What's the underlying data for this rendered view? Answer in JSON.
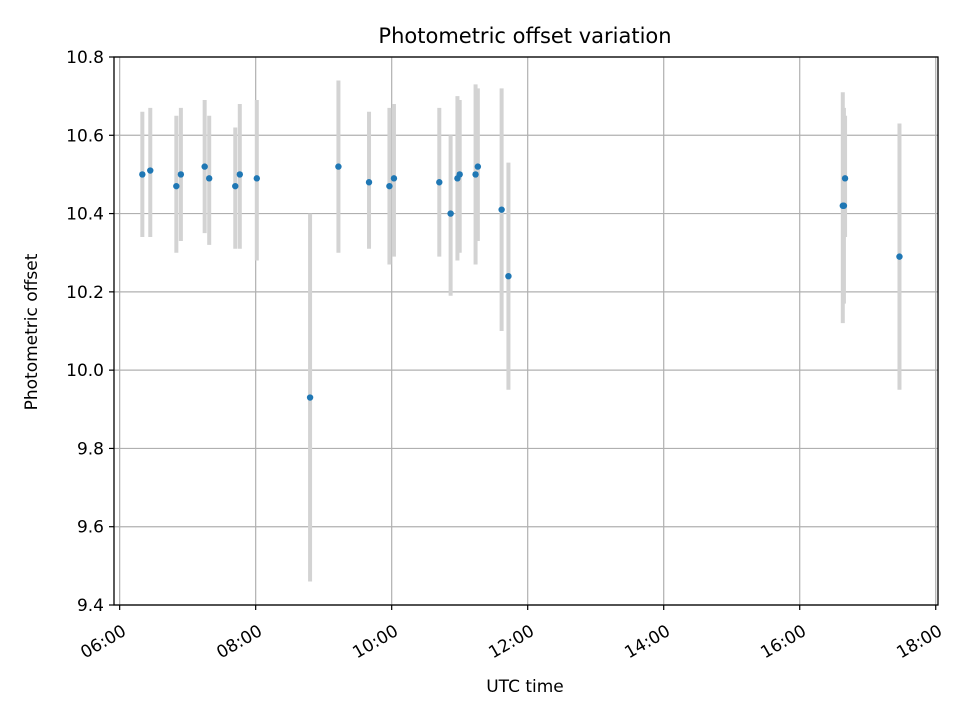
{
  "chart_data": {
    "type": "scatter",
    "title": "Photometric offset variation",
    "xlabel": "UTC time",
    "ylabel": "Photometric offset",
    "x_unit": "hours",
    "xlim": [
      "05:55",
      "18:02"
    ],
    "ylim": [
      9.4,
      10.8
    ],
    "x_ticks": [
      "06:00",
      "08:00",
      "10:00",
      "12:00",
      "14:00",
      "16:00",
      "18:00"
    ],
    "y_ticks": [
      "9.4",
      "9.6",
      "9.8",
      "10.0",
      "10.2",
      "10.4",
      "10.6",
      "10.8"
    ],
    "grid": true,
    "colors": {
      "point": "#1f77b4",
      "errorbar": "#d3d3d3",
      "grid": "#b0b0b0",
      "axis": "#000000"
    },
    "points": [
      {
        "x": "06:20",
        "y": 10.5,
        "ylo": 10.34,
        "yhi": 10.66
      },
      {
        "x": "06:27",
        "y": 10.51,
        "ylo": 10.34,
        "yhi": 10.67
      },
      {
        "x": "06:50",
        "y": 10.47,
        "ylo": 10.3,
        "yhi": 10.65
      },
      {
        "x": "06:54",
        "y": 10.5,
        "ylo": 10.33,
        "yhi": 10.67
      },
      {
        "x": "07:15",
        "y": 10.52,
        "ylo": 10.35,
        "yhi": 10.69
      },
      {
        "x": "07:19",
        "y": 10.49,
        "ylo": 10.32,
        "yhi": 10.65
      },
      {
        "x": "07:42",
        "y": 10.47,
        "ylo": 10.31,
        "yhi": 10.62
      },
      {
        "x": "07:46",
        "y": 10.5,
        "ylo": 10.31,
        "yhi": 10.68
      },
      {
        "x": "08:01",
        "y": 10.49,
        "ylo": 10.28,
        "yhi": 10.69
      },
      {
        "x": "08:48",
        "y": 9.93,
        "ylo": 9.46,
        "yhi": 10.4
      },
      {
        "x": "09:13",
        "y": 10.52,
        "ylo": 10.3,
        "yhi": 10.74
      },
      {
        "x": "09:40",
        "y": 10.48,
        "ylo": 10.31,
        "yhi": 10.66
      },
      {
        "x": "09:58",
        "y": 10.47,
        "ylo": 10.27,
        "yhi": 10.67
      },
      {
        "x": "10:02",
        "y": 10.49,
        "ylo": 10.29,
        "yhi": 10.68
      },
      {
        "x": "10:42",
        "y": 10.48,
        "ylo": 10.29,
        "yhi": 10.67
      },
      {
        "x": "10:52",
        "y": 10.4,
        "ylo": 10.19,
        "yhi": 10.6
      },
      {
        "x": "10:58",
        "y": 10.49,
        "ylo": 10.28,
        "yhi": 10.7
      },
      {
        "x": "11:00",
        "y": 10.5,
        "ylo": 10.3,
        "yhi": 10.69
      },
      {
        "x": "11:14",
        "y": 10.5,
        "ylo": 10.27,
        "yhi": 10.73
      },
      {
        "x": "11:16",
        "y": 10.52,
        "ylo": 10.33,
        "yhi": 10.72
      },
      {
        "x": "11:37",
        "y": 10.41,
        "ylo": 10.1,
        "yhi": 10.72
      },
      {
        "x": "11:43",
        "y": 10.24,
        "ylo": 9.95,
        "yhi": 10.53
      },
      {
        "x": "16:38",
        "y": 10.42,
        "ylo": 10.12,
        "yhi": 10.71
      },
      {
        "x": "16:39",
        "y": 10.42,
        "ylo": 10.17,
        "yhi": 10.67
      },
      {
        "x": "16:40",
        "y": 10.49,
        "ylo": 10.34,
        "yhi": 10.65
      },
      {
        "x": "17:28",
        "y": 10.29,
        "ylo": 9.95,
        "yhi": 10.63
      }
    ]
  }
}
